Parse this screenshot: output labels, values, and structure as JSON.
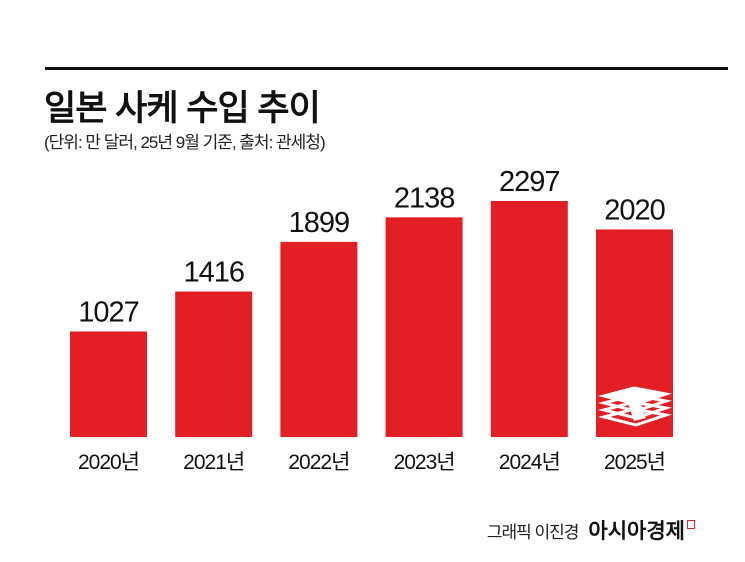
{
  "title": "일본 사케 수입 추이",
  "subtitle": "(단위: 만 달러, 25년 9월 기준, 출처: 관세청)",
  "credit": {
    "author": "그래픽 이진경",
    "brand": "아시아경제"
  },
  "colors": {
    "bar": "#e31f26",
    "text": "#111111"
  },
  "icons": {
    "last_bar": "money-stack-icon"
  },
  "chart_data": {
    "type": "bar",
    "title": "일본 사케 수입 추이",
    "categories": [
      "2020년",
      "2021년",
      "2022년",
      "2023년",
      "2024년",
      "2025년"
    ],
    "values": [
      1027,
      1416,
      1899,
      2138,
      2297,
      2020
    ],
    "ylim": [
      0,
      2297
    ],
    "grid": false,
    "data_labels": true
  }
}
